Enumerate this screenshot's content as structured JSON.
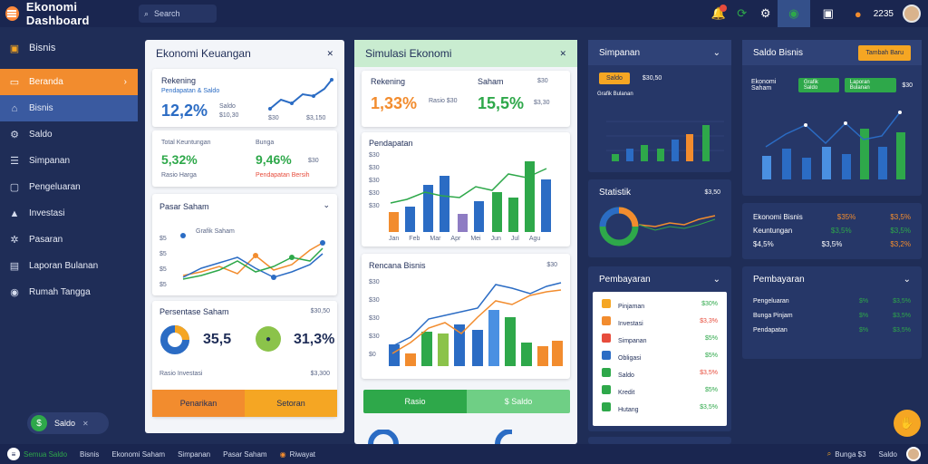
{
  "app": {
    "title": "Ekonomi Dashboard",
    "search_placeholder": "Search"
  },
  "topbar": {
    "value": "2235",
    "icons": [
      "bell-icon",
      "refresh-icon",
      "gear-icon",
      "globe-icon",
      "window-icon",
      "coin-icon"
    ]
  },
  "sidebar": {
    "title": "Bisnis",
    "items": [
      {
        "label": "Beranda",
        "icon": "wallet-icon"
      },
      {
        "label": "Bisnis",
        "icon": "home-icon"
      },
      {
        "label": "Saldo",
        "icon": "gear-icon"
      },
      {
        "label": "Simpanan",
        "icon": "list-icon"
      },
      {
        "label": "Pengeluaran",
        "icon": "box-icon"
      },
      {
        "label": "Investasi",
        "icon": "chart-icon"
      },
      {
        "label": "Pasaran",
        "icon": "gear-icon"
      },
      {
        "label": "Laporan Bulanan",
        "icon": "doc-icon"
      },
      {
        "label": "Rumah Tangga",
        "icon": "circle-icon"
      }
    ],
    "pill": {
      "label": "Saldo",
      "value": "$"
    }
  },
  "panel1": {
    "title": "Ekonomi Keuangan",
    "card1": {
      "title": "Rekening",
      "sub": "Pendapatan & Saldo",
      "value": "12,2%",
      "label": "Saldo",
      "amount": "$10,30",
      "a1": "$30",
      "a2": "$3,150"
    },
    "card2": {
      "l1": "Total Keuntungan",
      "v1": "5,32%",
      "s1": "Rasio Harga",
      "l2": "Bunga",
      "v2": "9,46%",
      "s2": "$30",
      "s3": "Pendapatan Bersih"
    },
    "card3": {
      "title": "Pasar Saham",
      "legend": "Grafik Saham",
      "y": [
        "$5",
        "$5",
        "$5",
        "$5",
        "$5"
      ]
    },
    "card4": {
      "title": "Persentase Saham",
      "right": "$30,50",
      "v1": "35,5",
      "v2": "31,3%",
      "foot": "Rasio Investasi",
      "foot_right": "$3,300"
    },
    "btn1": "Penarikan",
    "btn2": "Setoran"
  },
  "panel2": {
    "title": "Simulasi Ekonomi",
    "card1": {
      "t1": "Rekening",
      "t2": "Saham",
      "v1": "1,33%",
      "v2": "15,5%",
      "s1": "Rasio $30",
      "s2": "$30",
      "s3": "$3,30"
    },
    "card2": {
      "title": "Pendapatan",
      "y": [
        "$30",
        "$30",
        "$30",
        "$30",
        "$30",
        "$0"
      ],
      "x": [
        "Jan",
        "Feb",
        "Mar",
        "Apr",
        "Mei",
        "Jun",
        "Jul",
        "Agu",
        "Sep",
        "Okt"
      ]
    },
    "card3": {
      "title": "Rencana Bisnis",
      "right": "$30",
      "y": [
        "$30",
        "$30",
        "$30",
        "$30",
        "$0"
      ]
    },
    "btn1": "Rasio",
    "btn2": "$ Saldo"
  },
  "panel3": {
    "title": "Simpanan",
    "chip": "Saldo",
    "sub": "$30,50",
    "chart_title": "Grafik Bulanan",
    "y": [
      "$5",
      "$5",
      "$5",
      "$5",
      "$5"
    ]
  },
  "panel4": {
    "title": "Saldo Bisnis",
    "btn": "Tambah Baru"
  },
  "panel4b": {
    "chip1": "Grafik Saldo",
    "chip2": "Laporan Bulanan",
    "right": "$30",
    "chart_title": "Ekonomi Saham"
  },
  "panel5": {
    "title": "Statistik",
    "right": "$3,50"
  },
  "panel6": {
    "title": "Ekonomi Bisnis",
    "rows": [
      [
        "Pendapatan",
        "$35%",
        "$3,5%"
      ],
      [
        "Keuntungan",
        "$3,5%",
        "$3,5%"
      ],
      [
        "$4,5%",
        "$3,5%",
        "$3,2%"
      ]
    ]
  },
  "panel7": {
    "title": "Pembayaran",
    "rows": [
      [
        "Pinjaman",
        "$30%",
        "orange"
      ],
      [
        "Investasi",
        "$3,3%",
        "red"
      ],
      [
        "Simpanan",
        "$5%",
        "green"
      ],
      [
        "Obligasi",
        "$5%",
        "green"
      ],
      [
        "Saldo",
        "$3,5%",
        "red"
      ],
      [
        "Kredit",
        "$5%",
        "green"
      ],
      [
        "Hutang",
        "$3,5%",
        "green"
      ]
    ]
  },
  "panel8": {
    "title": "Pembayaran",
    "rows": [
      [
        "Pengeluaran",
        "$%",
        "$3,5%"
      ],
      [
        "Bunga Pinjam",
        "$%",
        "$3,5%"
      ],
      [
        "Pendapatan",
        "$%",
        "$3,5%"
      ]
    ]
  },
  "bottombar": {
    "items": [
      "Semua Saldo",
      "Bisnis",
      "Ekonomi Saham",
      "Simpanan",
      "Pasar Saham",
      "Riwayat"
    ],
    "right1": "Bunga $3",
    "right2": "Saldo"
  },
  "colors": {
    "orange": "#f28c2e",
    "green": "#2ea84a",
    "blue": "#2b6cc4",
    "navy": "#1f2d57"
  }
}
